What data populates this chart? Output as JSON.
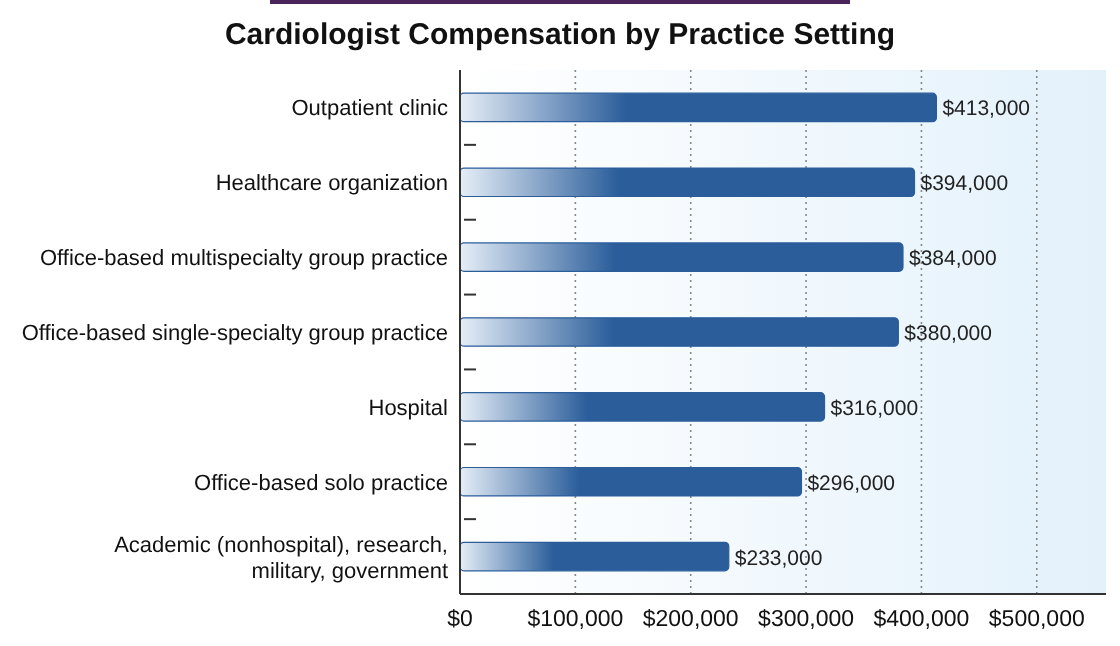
{
  "chart_data": {
    "type": "bar",
    "orientation": "horizontal",
    "title": "Cardiologist Compensation by Practice Setting",
    "categories": [
      "Outpatient clinic",
      "Healthcare organization",
      "Office-based multispecialty group practice",
      "Office-based single-specialty group practice",
      "Hospital",
      "Office-based solo practice",
      "Academic (nonhospital), research, military, government"
    ],
    "values": [
      413000,
      394000,
      384000,
      380000,
      316000,
      296000,
      233000
    ],
    "value_labels": [
      "$413,000",
      "$394,000",
      "$384,000",
      "$380,000",
      "$316,000",
      "$296,000",
      "$233,000"
    ],
    "color": "#2a5d9a",
    "xlim": [
      0,
      560000
    ],
    "xticks": [
      {
        "value": 0,
        "label": "$0"
      },
      {
        "value": 100000,
        "label": "$100,000"
      },
      {
        "value": 200000,
        "label": "$200,000"
      },
      {
        "value": 300000,
        "label": "$300,000"
      },
      {
        "value": 400000,
        "label": "$400,000"
      },
      {
        "value": 500000,
        "label": "$500,000"
      }
    ],
    "grid": "x"
  }
}
